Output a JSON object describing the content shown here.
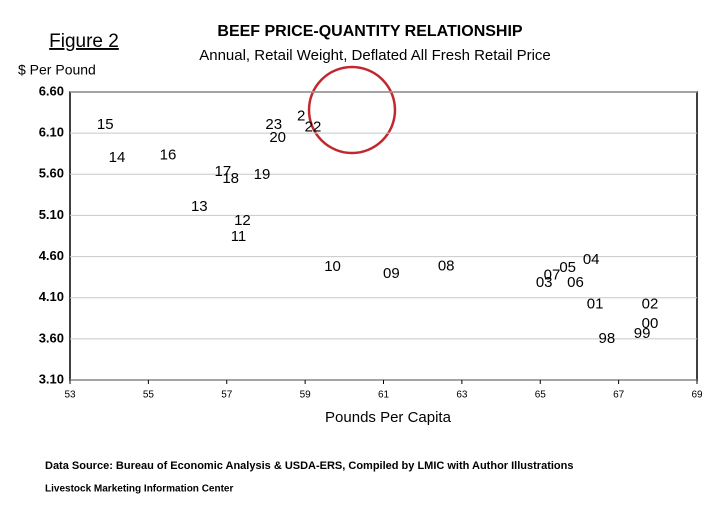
{
  "figure_label": "Figure 2",
  "chart_data": {
    "type": "scatter",
    "title": "BEEF PRICE-QUANTITY RELATIONSHIP",
    "subtitle": "Annual, Retail Weight, Deflated All Fresh Retail Price",
    "y_label": "$ Per Pound",
    "x_label": "Pounds Per Capita",
    "labels": [
      "15",
      "14",
      "16",
      "17",
      "18",
      "19",
      "13",
      "12",
      "11",
      "23",
      "20",
      "2",
      "22",
      "10",
      "09",
      "08",
      "04",
      "05",
      "07",
      "03",
      "06",
      "01",
      "02",
      "00",
      "99",
      "98"
    ],
    "x": [
      53.9,
      54.2,
      55.5,
      56.9,
      57.1,
      57.9,
      56.3,
      57.4,
      57.3,
      58.2,
      58.3,
      58.9,
      59.2,
      59.7,
      61.2,
      62.6,
      66.3,
      65.7,
      65.3,
      65.1,
      65.9,
      66.4,
      67.8,
      67.8,
      67.6,
      66.7
    ],
    "values": [
      6.2,
      5.8,
      5.83,
      5.63,
      5.54,
      5.59,
      5.2,
      5.03,
      4.84,
      6.2,
      6.04,
      6.3,
      6.17,
      4.47,
      4.39,
      4.48,
      4.56,
      4.46,
      4.37,
      4.28,
      4.28,
      4.02,
      4.02,
      3.78,
      3.66,
      3.6
    ],
    "color": "#000000",
    "xlim": [
      53,
      69
    ],
    "xticks": [
      53,
      55,
      57,
      59,
      61,
      63,
      65,
      67,
      69
    ],
    "ylim": [
      3.1,
      6.6
    ],
    "yticks": [
      {
        "value": 3.1,
        "label": "3.10"
      },
      {
        "value": 3.6,
        "label": "3.60"
      },
      {
        "value": 4.1,
        "label": "4.10"
      },
      {
        "value": 4.6,
        "label": "4.60"
      },
      {
        "value": 5.1,
        "label": "5.10"
      },
      {
        "value": 5.6,
        "label": "5.60"
      },
      {
        "value": 6.1,
        "label": "6.10"
      },
      {
        "value": 6.6,
        "label": "6.60"
      }
    ],
    "grid": true
  },
  "footer": {
    "source": "Data Source:  Bureau of Economic Analysis & USDA-ERS, Compiled by LMIC with Author Illustrations",
    "org": "Livestock Marketing Information Center"
  }
}
